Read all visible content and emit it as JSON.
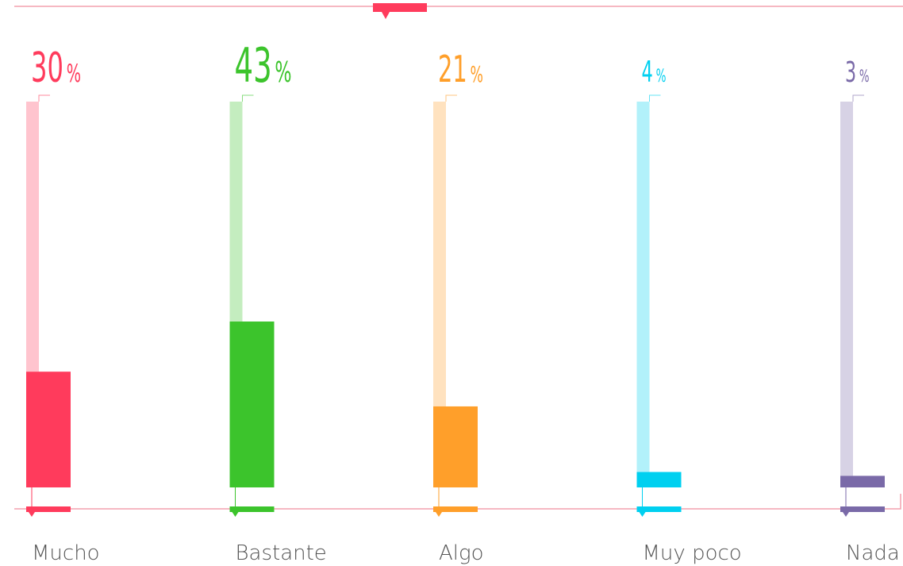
{
  "chart_data": {
    "type": "bar",
    "categories": [
      "Mucho",
      "Bastante",
      "Algo",
      "Muy poco",
      "Nada"
    ],
    "values": [
      30,
      43,
      21,
      4,
      3
    ],
    "unit": "%",
    "colors": [
      "#ff3b5c",
      "#3cc42c",
      "#ff9f2a",
      "#00d0f0",
      "#7a6aa8"
    ],
    "ylim": [
      0,
      100
    ]
  }
}
